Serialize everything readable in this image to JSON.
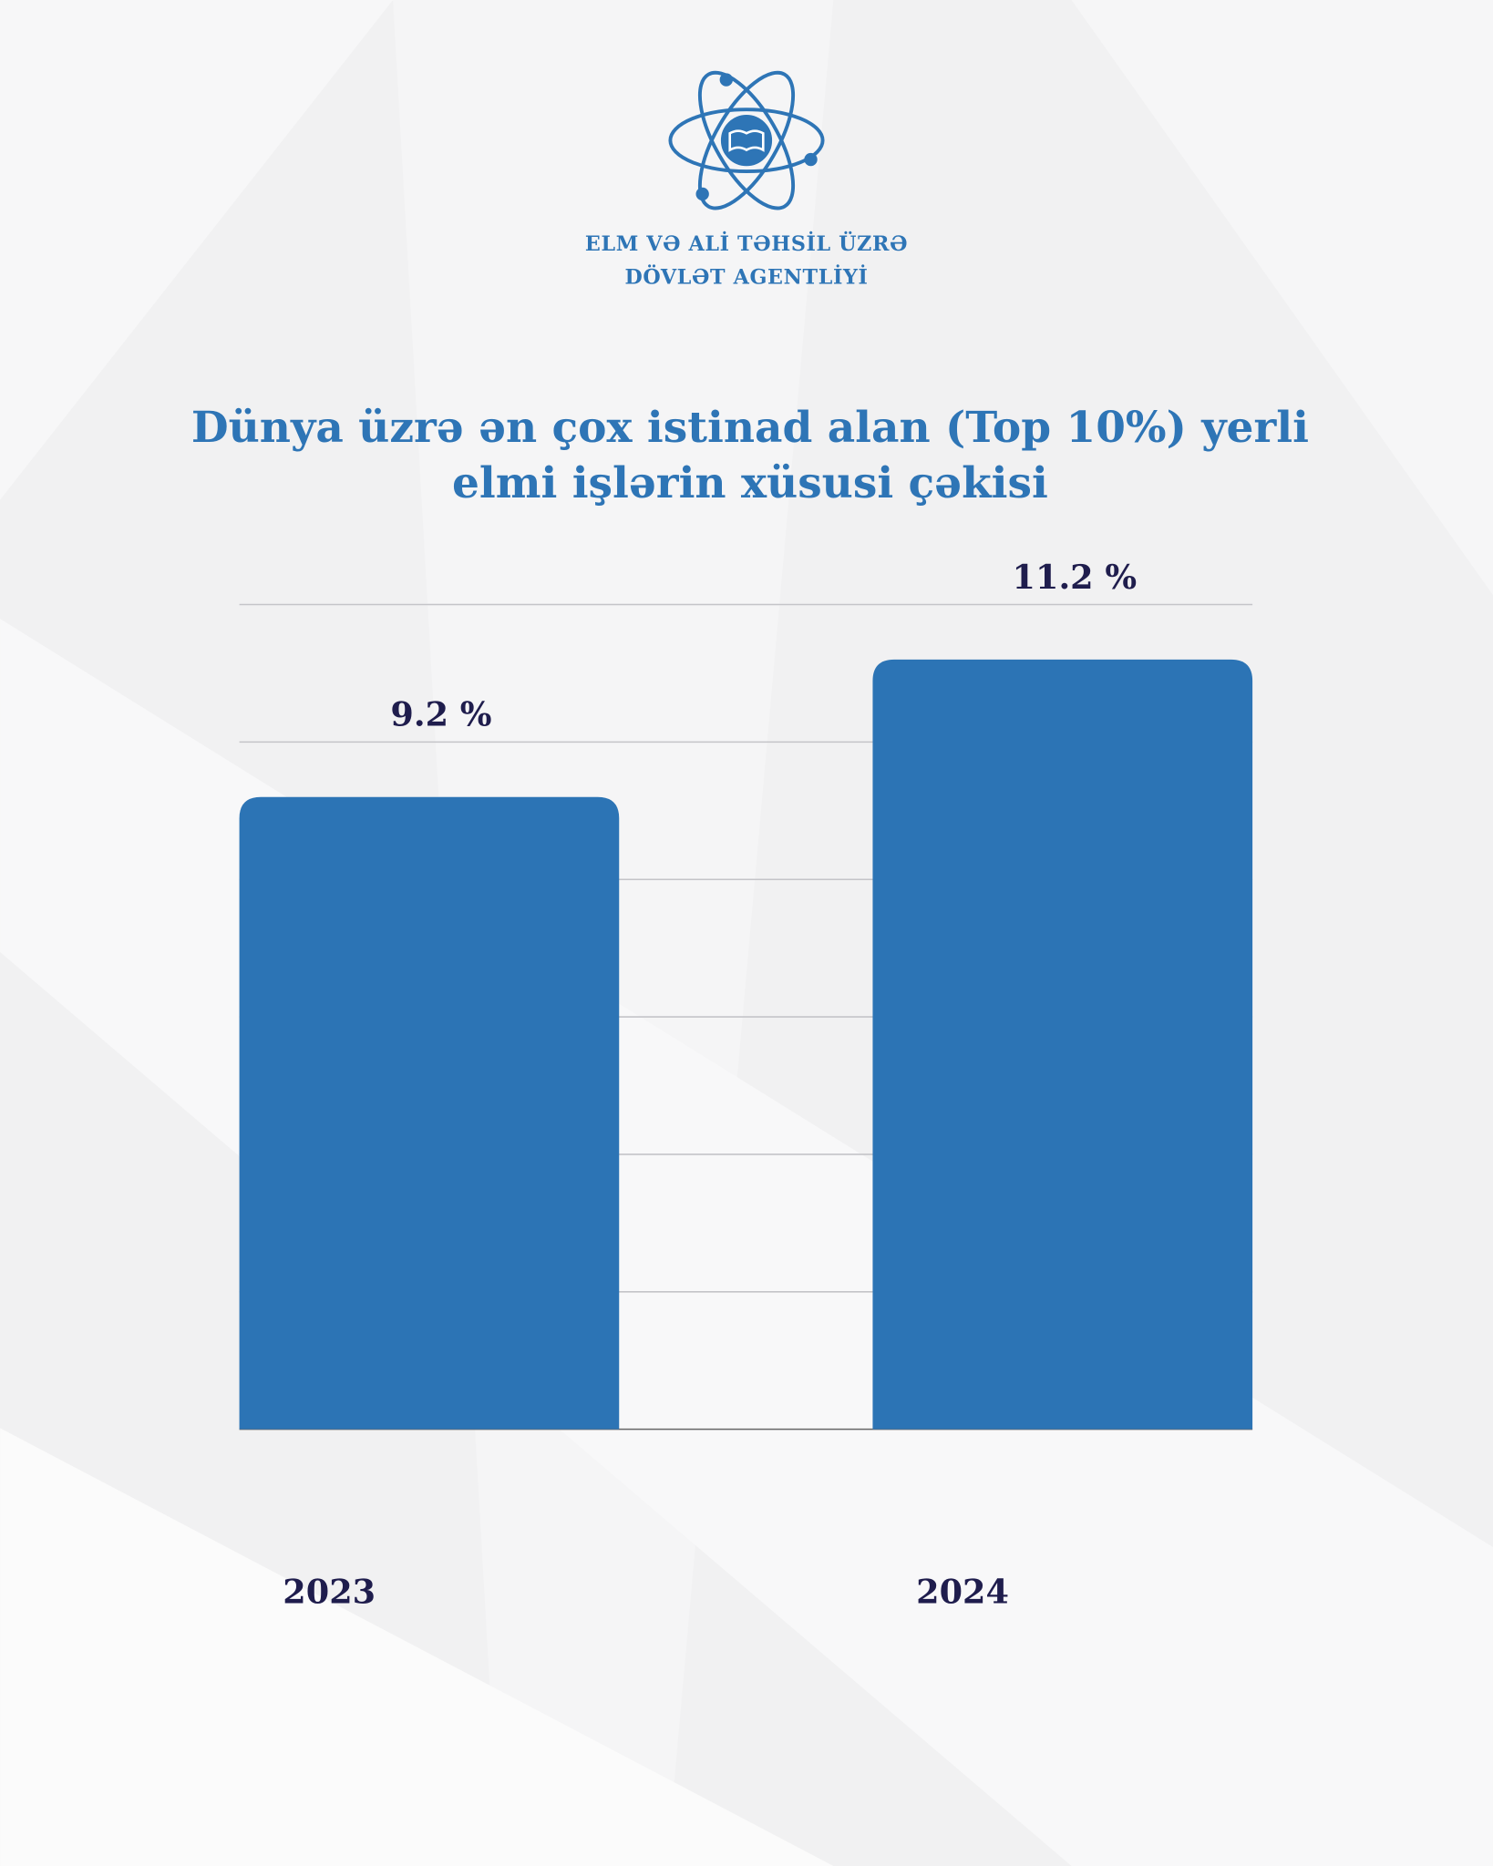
{
  "header": {
    "org": [
      "ELM VƏ ALİ TƏHSİL ÜZRƏ",
      "DÖVLƏT AGENTLİYİ"
    ]
  },
  "chart_data": {
    "type": "bar",
    "title": [
      "Dünya üzrə ən çox istinad alan (Top 10%) yerli",
      "elmi işlərin xüsusi çəkisi"
    ],
    "categories": [
      "2023",
      "2024"
    ],
    "values": [
      9.2,
      11.2
    ],
    "value_labels": [
      "9.2 %",
      "11.2 %"
    ],
    "color": "#2c74b5",
    "ylim": [
      0,
      12
    ],
    "yticks": [
      0,
      2,
      4,
      6,
      8,
      10,
      12
    ],
    "grid": true
  }
}
